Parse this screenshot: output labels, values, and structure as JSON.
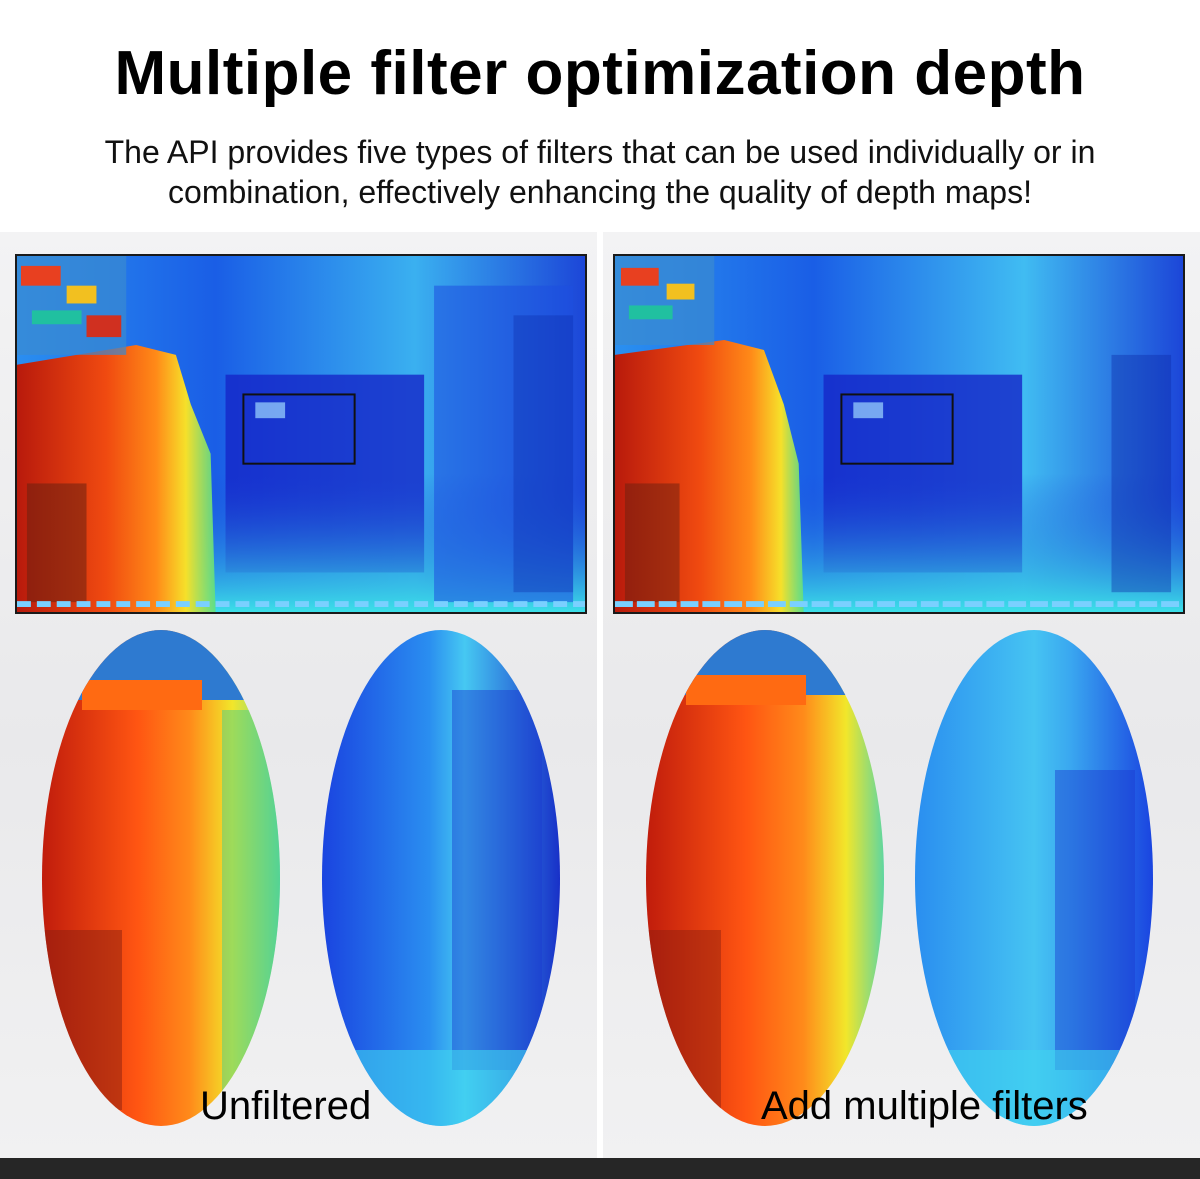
{
  "header": {
    "title": "Multiple filter optimization depth",
    "subtitle_line1": "The API provides five types of filters that can be used individually or in",
    "subtitle_line2": "combination, effectively enhancing the quality of depth maps!"
  },
  "panels": [
    {
      "caption": "Unfiltered"
    },
    {
      "caption": "Add multiple filters"
    }
  ],
  "colors": {
    "near_red": "#d42a10",
    "near_orange": "#ff6a12",
    "mid_yellow": "#f2e62a",
    "mid_green": "#5fe07a",
    "far_cyan": "#34c4f0",
    "far_blue": "#1a44e0",
    "deep_blue": "#1020b8"
  },
  "icons": [
    "depth-map-image",
    "depth-map-closeup-image"
  ]
}
